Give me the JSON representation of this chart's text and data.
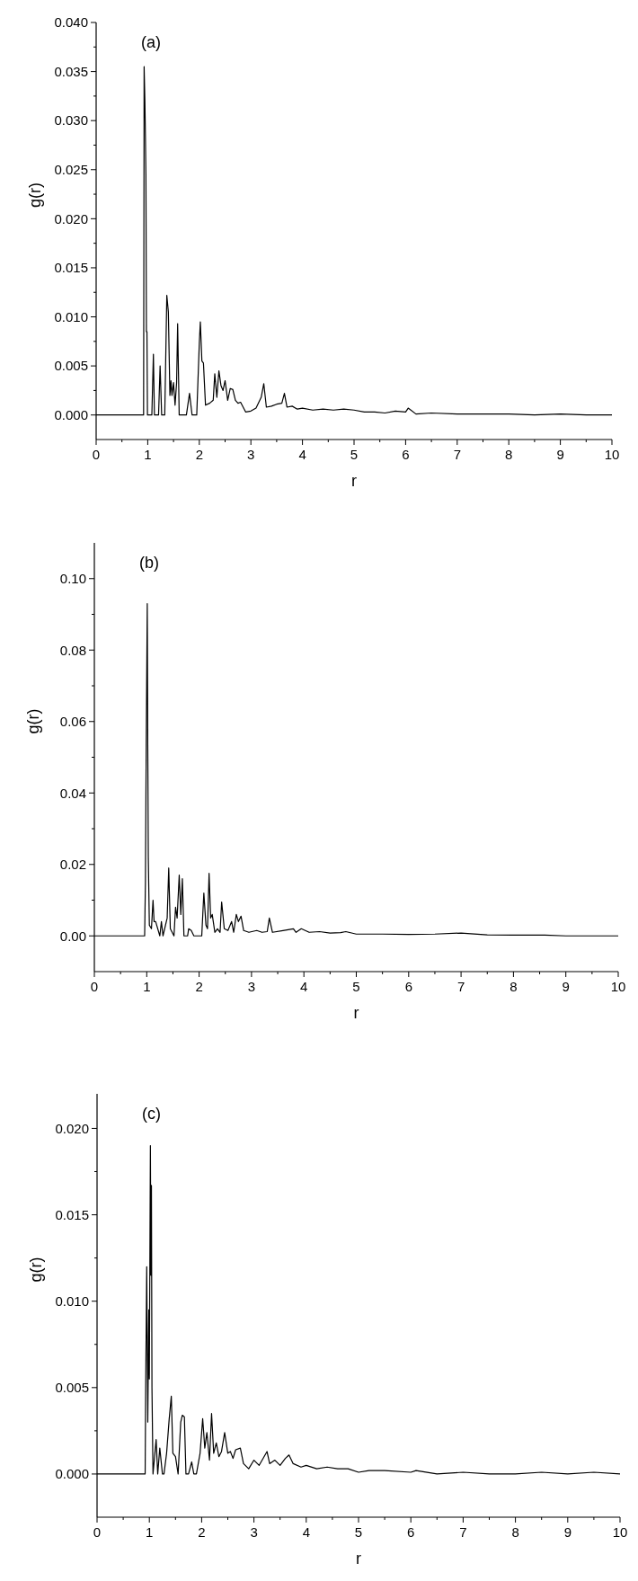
{
  "chart_data": [
    {
      "type": "line",
      "title": "(a)",
      "xlabel": "r",
      "ylabel": "g(r)",
      "xlim": [
        0,
        10
      ],
      "ylim": [
        -0.0025,
        0.04
      ],
      "xticks": [
        0,
        {
          "value": 0.5,
          "label": null
        },
        1,
        {
          "value": 1.5,
          "label": null
        },
        2,
        {
          "value": 2.5,
          "label": null
        },
        3,
        {
          "value": 3.5,
          "label": null
        },
        4,
        {
          "value": 4.5,
          "label": null
        },
        5,
        {
          "value": 5.5,
          "label": null
        },
        6,
        {
          "value": 6.5,
          "label": null
        },
        7,
        {
          "value": 7.5,
          "label": null
        },
        8,
        {
          "value": 8.5,
          "label": null
        },
        9,
        {
          "value": 9.5,
          "label": null
        },
        10
      ],
      "yticks": [
        {
          "value": 0,
          "label": "0.000"
        },
        {
          "value": 0.0025,
          "label": null
        },
        {
          "value": 0.005,
          "label": "0.005"
        },
        {
          "value": 0.0075,
          "label": null
        },
        {
          "value": 0.01,
          "label": "0.010"
        },
        {
          "value": 0.0125,
          "label": null
        },
        {
          "value": 0.015,
          "label": "0.015"
        },
        {
          "value": 0.0175,
          "label": null
        },
        {
          "value": 0.02,
          "label": "0.020"
        },
        {
          "value": 0.0225,
          "label": null
        },
        {
          "value": 0.025,
          "label": "0.025"
        },
        {
          "value": 0.0275,
          "label": null
        },
        {
          "value": 0.03,
          "label": "0.030"
        },
        {
          "value": 0.0325,
          "label": null
        },
        {
          "value": 0.035,
          "label": "0.035"
        },
        {
          "value": 0.0375,
          "label": null
        },
        {
          "value": 0.04,
          "label": "0.040"
        }
      ],
      "grid": false,
      "marker": "none",
      "line_style": "solid",
      "series": [
        {
          "color": "#000000",
          "x": [
            0,
            0.92,
            0.925,
            0.93,
            0.945,
            0.955,
            0.965,
            0.975,
            0.985,
            0.995,
            1.08,
            1.11,
            1.13,
            1.16,
            1.21,
            1.24,
            1.27,
            1.33,
            1.37,
            1.4,
            1.43,
            1.45,
            1.47,
            1.5,
            1.53,
            1.56,
            1.58,
            1.61,
            1.75,
            1.81,
            1.86,
            1.95,
            2.0,
            2.02,
            2.05,
            2.08,
            2.12,
            2.2,
            2.27,
            2.3,
            2.34,
            2.38,
            2.42,
            2.46,
            2.5,
            2.55,
            2.6,
            2.65,
            2.7,
            2.75,
            2.8,
            2.9,
            3.0,
            3.1,
            3.2,
            3.25,
            3.3,
            3.4,
            3.5,
            3.6,
            3.65,
            3.7,
            3.8,
            3.9,
            4.0,
            4.2,
            4.4,
            4.6,
            4.8,
            5.0,
            5.2,
            5.4,
            5.6,
            5.8,
            6.0,
            6.05,
            6.2,
            6.5,
            7,
            7.5,
            8,
            8.5,
            9,
            9.5,
            10
          ],
          "values": [
            0,
            0,
            0.016,
            0.0355,
            0.032,
            0.0285,
            0.0245,
            0.0085,
            0.0085,
            0,
            0,
            0.0062,
            0,
            0,
            0,
            0.005,
            0,
            0,
            0.0122,
            0.0105,
            0.002,
            0.0035,
            0.002,
            0.0033,
            0.001,
            0.0033,
            0.0093,
            0,
            0,
            0.0022,
            0,
            0,
            0.0073,
            0.0095,
            0.0055,
            0.0053,
            0.001,
            0.0012,
            0.0015,
            0.0042,
            0.0018,
            0.0045,
            0.003,
            0.0025,
            0.0035,
            0.0015,
            0.0027,
            0.0026,
            0.0015,
            0.0012,
            0.0013,
            0.0003,
            0.0004,
            0.0007,
            0.0018,
            0.0032,
            0.0008,
            0.0009,
            0.0011,
            0.0012,
            0.0022,
            0.0008,
            0.0009,
            0.0006,
            0.0007,
            0.0005,
            0.0006,
            0.0005,
            0.0006,
            0.0005,
            0.0003,
            0.0003,
            0.0002,
            0.0004,
            0.0003,
            0.0007,
            0.0001,
            0.0002,
            0.0001,
            0.0001,
            0.0001,
            0,
            0.0001,
            0,
            0
          ]
        }
      ]
    },
    {
      "type": "line",
      "title": "(b)",
      "xlabel": "r",
      "ylabel": "g(r)",
      "xlim": [
        0,
        10
      ],
      "ylim": [
        -0.01,
        0.11
      ],
      "xticks": [
        0,
        {
          "value": 0.5,
          "label": null
        },
        1,
        {
          "value": 1.5,
          "label": null
        },
        2,
        {
          "value": 2.5,
          "label": null
        },
        3,
        {
          "value": 3.5,
          "label": null
        },
        4,
        {
          "value": 4.5,
          "label": null
        },
        5,
        {
          "value": 5.5,
          "label": null
        },
        6,
        {
          "value": 6.5,
          "label": null
        },
        7,
        {
          "value": 7.5,
          "label": null
        },
        8,
        {
          "value": 8.5,
          "label": null
        },
        9,
        {
          "value": 9.5,
          "label": null
        },
        10
      ],
      "yticks": [
        {
          "value": 0,
          "label": "0.00"
        },
        {
          "value": 0.01,
          "label": null
        },
        {
          "value": 0.02,
          "label": "0.02"
        },
        {
          "value": 0.03,
          "label": null
        },
        {
          "value": 0.04,
          "label": "0.04"
        },
        {
          "value": 0.05,
          "label": null
        },
        {
          "value": 0.06,
          "label": "0.06"
        },
        {
          "value": 0.07,
          "label": null
        },
        {
          "value": 0.08,
          "label": "0.08"
        },
        {
          "value": 0.09,
          "label": null
        },
        {
          "value": 0.1,
          "label": "0.10"
        }
      ],
      "grid": false,
      "marker": "none",
      "line_style": "solid",
      "series": [
        {
          "color": "#000000",
          "x": [
            0,
            0.96,
            0.975,
            0.99,
            1.01,
            1.02,
            1.03,
            1.05,
            1.09,
            1.12,
            1.14,
            1.17,
            1.25,
            1.28,
            1.31,
            1.39,
            1.42,
            1.45,
            1.52,
            1.55,
            1.58,
            1.62,
            1.65,
            1.68,
            1.71,
            1.78,
            1.8,
            1.85,
            1.9,
            2.05,
            2.09,
            2.13,
            2.16,
            2.19,
            2.22,
            2.25,
            2.3,
            2.35,
            2.4,
            2.43,
            2.48,
            2.55,
            2.62,
            2.66,
            2.71,
            2.75,
            2.8,
            2.85,
            2.95,
            3.1,
            3.2,
            3.3,
            3.34,
            3.4,
            3.6,
            3.8,
            3.85,
            3.95,
            4.1,
            4.3,
            4.5,
            4.7,
            4.8,
            5.0,
            5.5,
            6.0,
            6.5,
            7.0,
            7.5,
            8.0,
            8.6,
            9,
            10
          ],
          "values": [
            0,
            0,
            0.015,
            0.053,
            0.093,
            0.052,
            0.022,
            0.003,
            0.002,
            0.01,
            0.004,
            0.004,
            0,
            0.004,
            0,
            0.005,
            0.019,
            0.002,
            0,
            0.008,
            0.005,
            0.017,
            0.006,
            0.016,
            0,
            0,
            0.002,
            0.0015,
            0,
            0,
            0.012,
            0.003,
            0.002,
            0.0175,
            0.005,
            0.006,
            0.001,
            0.002,
            0.001,
            0.0095,
            0.002,
            0.0015,
            0.004,
            0.001,
            0.006,
            0.004,
            0.0055,
            0.0015,
            0.001,
            0.0015,
            0.001,
            0.0012,
            0.005,
            0.001,
            0.0015,
            0.002,
            0.001,
            0.002,
            0.001,
            0.0012,
            0.0008,
            0.0009,
            0.0012,
            0.0005,
            0.0005,
            0.0004,
            0.0005,
            0.0008,
            0.0003,
            0.0002,
            0.0002,
            0,
            0
          ]
        }
      ]
    },
    {
      "type": "line",
      "title": "(c)",
      "xlabel": "r",
      "ylabel": "g(r)",
      "xlim": [
        0,
        10
      ],
      "ylim": [
        -0.0025,
        0.022
      ],
      "xticks": [
        0,
        {
          "value": 0.5,
          "label": null
        },
        1,
        {
          "value": 1.5,
          "label": null
        },
        2,
        {
          "value": 2.5,
          "label": null
        },
        3,
        {
          "value": 3.5,
          "label": null
        },
        4,
        {
          "value": 4.5,
          "label": null
        },
        5,
        {
          "value": 5.5,
          "label": null
        },
        6,
        {
          "value": 6.5,
          "label": null
        },
        7,
        {
          "value": 7.5,
          "label": null
        },
        8,
        {
          "value": 8.5,
          "label": null
        },
        9,
        {
          "value": 9.5,
          "label": null
        },
        10
      ],
      "yticks": [
        {
          "value": 0,
          "label": "0.000"
        },
        {
          "value": 0.0025,
          "label": null
        },
        {
          "value": 0.005,
          "label": "0.005"
        },
        {
          "value": 0.0075,
          "label": null
        },
        {
          "value": 0.01,
          "label": "0.010"
        },
        {
          "value": 0.0125,
          "label": null
        },
        {
          "value": 0.015,
          "label": "0.015"
        },
        {
          "value": 0.0175,
          "label": null
        },
        {
          "value": 0.02,
          "label": "0.020"
        }
      ],
      "grid": false,
      "marker": "none",
      "line_style": "solid",
      "series": [
        {
          "color": "#000000",
          "x": [
            0,
            0.92,
            0.93,
            0.95,
            0.97,
            0.99,
            1.0,
            1.02,
            1.03,
            1.04,
            1.05,
            1.07,
            1.13,
            1.16,
            1.2,
            1.25,
            1.28,
            1.33,
            1.38,
            1.42,
            1.45,
            1.5,
            1.55,
            1.6,
            1.63,
            1.67,
            1.7,
            1.75,
            1.81,
            1.85,
            1.9,
            1.97,
            2.02,
            2.06,
            2.1,
            2.15,
            2.19,
            2.23,
            2.28,
            2.33,
            2.38,
            2.44,
            2.5,
            2.55,
            2.6,
            2.65,
            2.74,
            2.8,
            2.9,
            3.0,
            3.1,
            3.25,
            3.3,
            3.4,
            3.5,
            3.6,
            3.67,
            3.75,
            3.9,
            4.0,
            4.2,
            4.4,
            4.6,
            4.8,
            5.0,
            5.2,
            5.5,
            6.0,
            6.1,
            6.5,
            7.0,
            7.5,
            8,
            8.5,
            9,
            9.5,
            10
          ],
          "values": [
            0,
            0,
            0.005,
            0.012,
            0.003,
            0.0095,
            0.0055,
            0.019,
            0.0115,
            0.0167,
            0.005,
            0,
            0.002,
            0,
            0.0015,
            0,
            0,
            0.0012,
            0.0032,
            0.0045,
            0.0012,
            0.001,
            0,
            0.003,
            0.0034,
            0.0033,
            0,
            0,
            0.0007,
            0,
            0,
            0.0012,
            0.0032,
            0.0015,
            0.0024,
            0.0008,
            0.0035,
            0.0012,
            0.0018,
            0.001,
            0.0013,
            0.0024,
            0.0012,
            0.0013,
            0.0009,
            0.0014,
            0.0015,
            0.0006,
            0.0003,
            0.0008,
            0.0005,
            0.0013,
            0.0006,
            0.0008,
            0.0005,
            0.0009,
            0.0011,
            0.0006,
            0.0004,
            0.0005,
            0.0003,
            0.0004,
            0.0003,
            0.0003,
            0.0001,
            0.0002,
            0.0002,
            0.0001,
            0.0002,
            0,
            0.0001,
            0,
            0,
            0.0001,
            0,
            0.0001,
            0
          ]
        }
      ]
    }
  ]
}
